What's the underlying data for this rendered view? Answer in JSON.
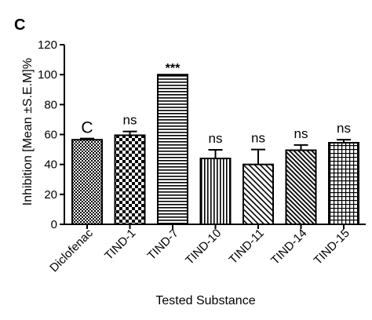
{
  "panel_label": "C",
  "chart_data": {
    "type": "bar",
    "title": "",
    "xlabel": "Tested Substance",
    "ylabel": "Inhibition [Mean ±S.E.M]%",
    "ylim": [
      0,
      120
    ],
    "yticks": [
      "0",
      "20",
      "40",
      "60",
      "80",
      "100",
      "120"
    ],
    "grid": false,
    "categories": [
      "Diclofenac",
      "TIND-1",
      "TIND-7",
      "TIND-10",
      "TIND-11",
      "TIND-14",
      "TIND-15"
    ],
    "values": [
      56.5,
      59.5,
      100,
      44,
      40,
      49.5,
      54.5
    ],
    "errors": [
      0.8,
      2.5,
      0,
      5.8,
      10,
      3.5,
      2
    ],
    "annotations": [
      "C",
      "ns",
      "***",
      "ns",
      "ns",
      "ns",
      "ns"
    ],
    "patterns": [
      "fine-checker",
      "coarse-checker",
      "horizontal-stripes",
      "vertical-stripes",
      "diagonal-stripes",
      "diagonal-stripes-dense",
      "grid"
    ],
    "colors": {
      "bar_edge": "#000000",
      "pattern": "#000000",
      "background": "#ffffff"
    }
  }
}
